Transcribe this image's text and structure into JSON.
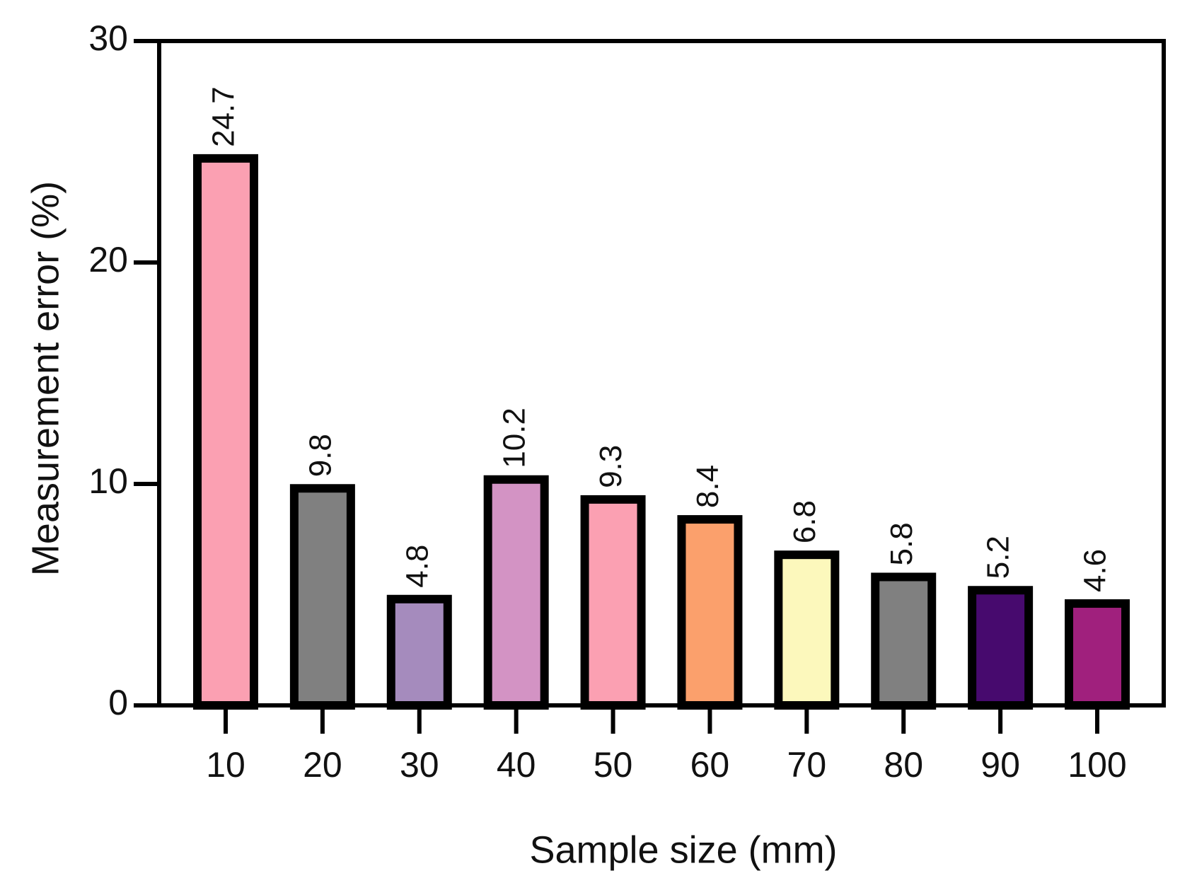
{
  "chart_data": {
    "type": "bar",
    "xlabel": "Sample size (mm)",
    "ylabel": "Measurement error (%)",
    "categories": [
      "10",
      "20",
      "30",
      "40",
      "50",
      "60",
      "70",
      "80",
      "90",
      "100"
    ],
    "values": [
      24.7,
      9.8,
      4.8,
      10.2,
      9.3,
      8.4,
      6.8,
      5.8,
      5.2,
      4.6
    ],
    "colors": [
      "#fba0b2",
      "#808080",
      "#a58bbd",
      "#d393c4",
      "#fba0b2",
      "#fba06c",
      "#fcf8bc",
      "#808080",
      "#470a6e",
      "#a0207d"
    ],
    "ylim": [
      0,
      30
    ],
    "yticks": [
      0,
      10,
      20,
      30
    ],
    "grid": false
  }
}
